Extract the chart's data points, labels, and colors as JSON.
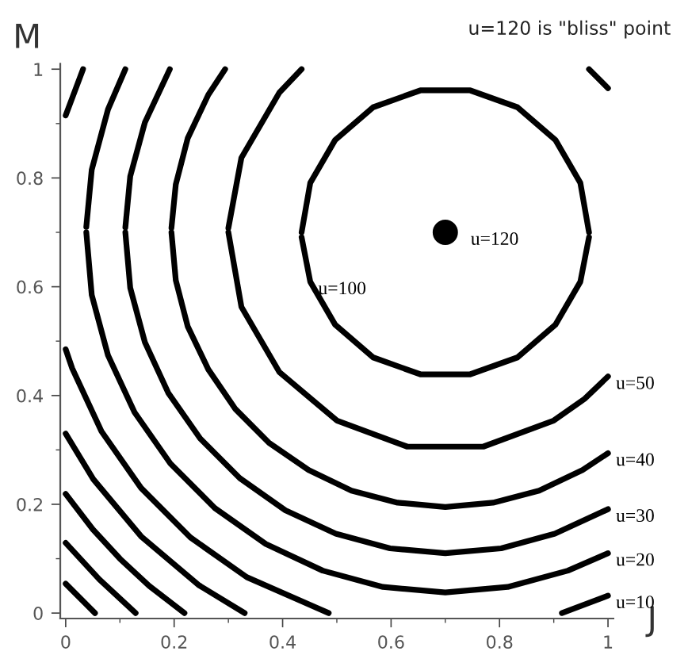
{
  "chart_data": {
    "type": "line",
    "title": "u=120 is \"bliss\" point",
    "xlabel": "J",
    "ylabel": "M",
    "xlim": [
      -0.01,
      1.01
    ],
    "ylim": [
      -0.01,
      1.01
    ],
    "xticks": [
      0,
      0.2,
      0.4,
      0.6,
      0.8,
      1
    ],
    "yticks": [
      0,
      0.2,
      0.4,
      0.6,
      0.8,
      1
    ],
    "grid": false,
    "line_style": "solid",
    "series": [
      {
        "color": "#000000",
        "x": [
          0.435,
          0.451,
          0.497,
          0.567,
          0.654,
          0.746,
          0.833,
          0.903,
          0.949,
          0.965
        ],
        "values": [
          0.7,
          0.791,
          0.87,
          0.93,
          0.961,
          0.961,
          0.93,
          0.87,
          0.791,
          0.7
        ]
      },
      {
        "color": "#000000",
        "x": [
          0.435,
          0.451,
          0.497,
          0.567,
          0.654,
          0.746,
          0.833,
          0.903,
          0.949,
          0.965
        ],
        "values": [
          0.691,
          0.609,
          0.53,
          0.47,
          0.439,
          0.439,
          0.47,
          0.53,
          0.609,
          0.691
        ]
      },
      {
        "color": "#000000",
        "x": [
          0.965,
          1.0
        ],
        "values": [
          1.0,
          0.965
        ]
      },
      {
        "color": "#000000",
        "x": [
          0.3,
          0.324,
          0.394,
          0.435
        ],
        "values": [
          0.708,
          0.837,
          0.957,
          1.0
        ]
      },
      {
        "color": "#000000",
        "x": [
          0.3,
          0.324,
          0.394,
          0.5,
          0.63,
          0.77,
          0.9,
          0.957,
          1.0
        ],
        "values": [
          0.7,
          0.563,
          0.443,
          0.354,
          0.306,
          0.306,
          0.354,
          0.394,
          0.435
        ]
      },
      {
        "color": "#000000",
        "x": [
          0.195,
          0.203,
          0.225,
          0.263,
          0.294
        ],
        "values": [
          0.708,
          0.788,
          0.873,
          0.953,
          1.0
        ]
      },
      {
        "color": "#000000",
        "x": [
          0.195,
          0.203,
          0.225,
          0.263,
          0.313,
          0.375,
          0.448,
          0.527,
          0.612,
          0.7,
          0.788,
          0.873,
          0.953,
          1.0
        ],
        "values": [
          0.7,
          0.612,
          0.527,
          0.448,
          0.375,
          0.313,
          0.263,
          0.225,
          0.203,
          0.195,
          0.203,
          0.225,
          0.263,
          0.294
        ]
      },
      {
        "color": "#000000",
        "x": [
          0.11,
          0.119,
          0.146,
          0.192
        ],
        "values": [
          0.709,
          0.803,
          0.902,
          1.0
        ]
      },
      {
        "color": "#000000",
        "x": [
          0.11,
          0.119,
          0.146,
          0.189,
          0.248,
          0.321,
          0.405,
          0.498,
          0.598,
          0.7,
          0.803,
          0.902,
          1.0
        ],
        "values": [
          0.7,
          0.598,
          0.498,
          0.405,
          0.321,
          0.248,
          0.189,
          0.146,
          0.119,
          0.11,
          0.119,
          0.146,
          0.191
        ]
      },
      {
        "color": "#000000",
        "x": [
          0.038,
          0.048,
          0.078,
          0.11
        ],
        "values": [
          0.71,
          0.815,
          0.926,
          1.0
        ]
      },
      {
        "color": "#000000",
        "x": [
          0.038,
          0.048,
          0.078,
          0.127,
          0.193,
          0.275,
          0.369,
          0.474,
          0.585,
          0.7,
          0.815,
          0.926,
          1.0
        ],
        "values": [
          0.7,
          0.585,
          0.474,
          0.369,
          0.275,
          0.193,
          0.127,
          0.078,
          0.048,
          0.038,
          0.048,
          0.078,
          0.11
        ]
      },
      {
        "color": "#000000",
        "x": [
          0.0,
          0.032
        ],
        "values": [
          0.915,
          1.0
        ]
      },
      {
        "color": "#000000",
        "x": [
          0.0,
          0.012,
          0.066,
          0.139,
          0.23,
          0.334,
          0.485
        ],
        "values": [
          0.485,
          0.45,
          0.334,
          0.23,
          0.139,
          0.066,
          0.0
        ]
      },
      {
        "color": "#000000",
        "x": [
          0.915,
          1.0
        ],
        "values": [
          0.0,
          0.032
        ]
      },
      {
        "color": "#000000",
        "x": [
          0.0,
          0.051,
          0.14,
          0.246,
          0.33
        ],
        "values": [
          0.33,
          0.246,
          0.14,
          0.051,
          0.0
        ]
      },
      {
        "color": "#000000",
        "x": [
          0.0,
          0.05,
          0.1,
          0.154,
          0.219
        ],
        "values": [
          0.219,
          0.154,
          0.1,
          0.05,
          0.0
        ]
      },
      {
        "color": "#000000",
        "x": [
          0.0,
          0.062,
          0.129
        ],
        "values": [
          0.129,
          0.062,
          0.0
        ]
      },
      {
        "color": "#000000",
        "x": [
          0.0,
          0.027,
          0.054
        ],
        "values": [
          0.054,
          0.027,
          0.0
        ]
      },
      {
        "type": "scatter",
        "color": "#000000",
        "marker": "circle",
        "x": [
          0.7
        ],
        "values": [
          0.7
        ]
      }
    ],
    "annotations": [
      {
        "text": "u=120",
        "x": 0.7,
        "y": 0.7
      },
      {
        "text": "u=100",
        "x": 0.451,
        "y": 0.609
      },
      {
        "text": "u=50",
        "x": 1.0,
        "y": 0.435
      },
      {
        "text": "u=40",
        "x": 1.0,
        "y": 0.294
      },
      {
        "text": "u=30",
        "x": 1.0,
        "y": 0.191
      },
      {
        "text": "u=20",
        "x": 1.0,
        "y": 0.11
      },
      {
        "text": "u=10",
        "x": 1.0,
        "y": 0.032
      }
    ]
  }
}
